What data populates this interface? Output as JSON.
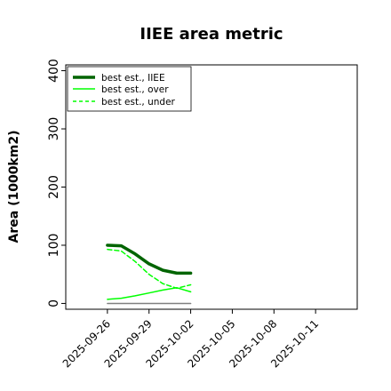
{
  "chart_data": {
    "type": "line",
    "title": "IIEE area metric",
    "xlabel": "",
    "ylabel": "Area (1000km2)",
    "ylim": [
      -10,
      410
    ],
    "xlim": [
      "2025-09-23",
      "2025-10-14"
    ],
    "y_ticks": [
      "0",
      "100",
      "200",
      "300",
      "400"
    ],
    "x_ticks": [
      "2025-09-26",
      "2025-09-29",
      "2025-10-02",
      "2025-10-05",
      "2025-10-08",
      "2025-10-11"
    ],
    "grid": false,
    "legend_position": "top-left",
    "x": [
      "2025-09-26",
      "2025-09-27",
      "2025-09-28",
      "2025-09-29",
      "2025-09-30",
      "2025-10-01",
      "2025-10-02"
    ],
    "series": [
      {
        "name": "best est., IIEE",
        "values": [
          100,
          99,
          85,
          68,
          57,
          52,
          52
        ],
        "color": "#006400",
        "style": "solid-thick"
      },
      {
        "name": "best est., over",
        "values": [
          7,
          9,
          13,
          18,
          23,
          27,
          20
        ],
        "color": "#00ff00",
        "style": "solid"
      },
      {
        "name": "best est., under",
        "values": [
          93,
          90,
          72,
          50,
          34,
          26,
          32
        ],
        "color": "#00ff00",
        "style": "dashed"
      },
      {
        "name": "",
        "values": [
          0,
          0,
          0,
          0,
          0,
          0,
          0
        ],
        "color": "#808080",
        "style": "solid"
      }
    ]
  }
}
